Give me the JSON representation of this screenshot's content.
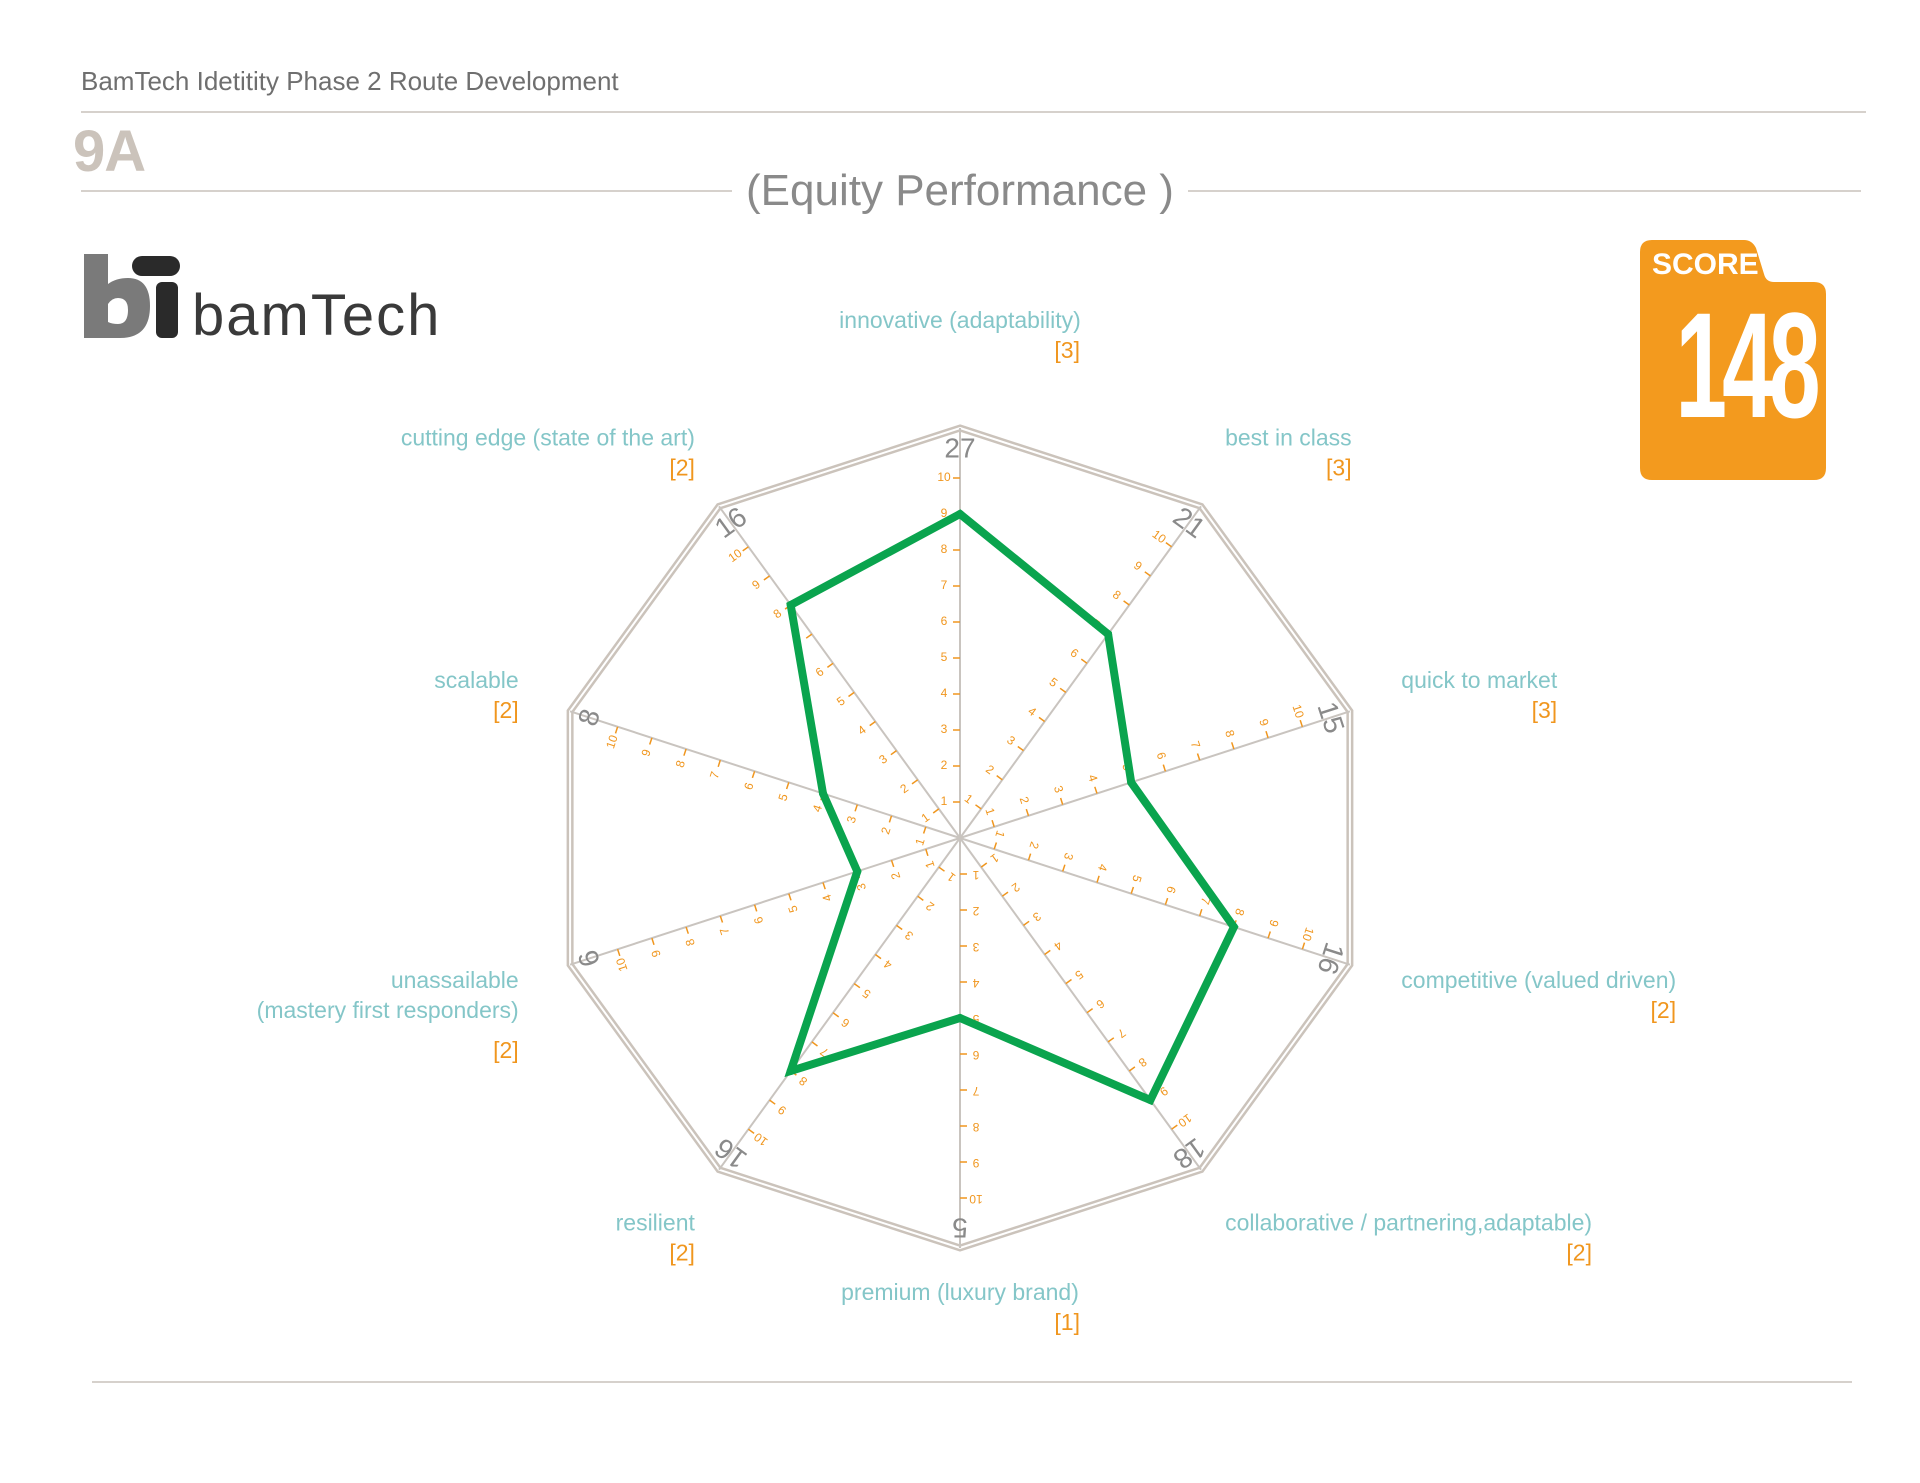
{
  "header": {
    "document_title": "BamTech Idetitity Phase 2 Route Development",
    "page_id": "9A",
    "chart_title": "(Equity Performance )"
  },
  "logo": {
    "wordmark": "bamTech"
  },
  "score": {
    "label": "SCORE",
    "value": "148",
    "color": "#f39a1e"
  },
  "colors": {
    "series_line": "#0aa44e",
    "frame": "#cbc3bb",
    "axis_label": "#84c6c8",
    "weight_label": "#f0961e",
    "total_label": "#8a8a8a"
  },
  "chart_data": {
    "type": "radar",
    "rmax": 10,
    "ticks": [
      "1",
      "2",
      "3",
      "4",
      "5",
      "6",
      "7",
      "8",
      "9",
      "10"
    ],
    "axes": [
      {
        "name": "innovative (adaptability)",
        "weight": "[3]",
        "total": "27",
        "value": 9
      },
      {
        "name": "best in class",
        "weight": "[3]",
        "total": "21",
        "value": 7
      },
      {
        "name": "quick to market",
        "weight": "[3]",
        "total": "15",
        "value": 5
      },
      {
        "name": "competitive (valued driven)",
        "weight": "[2]",
        "total": "16",
        "value": 8
      },
      {
        "name": "collaborative / partnering,adaptable)",
        "weight": "[2]",
        "total": "18",
        "value": 9
      },
      {
        "name": "premium (luxury brand)",
        "weight": "[1]",
        "total": "5",
        "value": 5
      },
      {
        "name": "resilient",
        "weight": "[2]",
        "total": "16",
        "value": 8
      },
      {
        "name": "unassailable",
        "name_line2": "(mastery first responders)",
        "weight": "[2]",
        "total": "6",
        "value": 3
      },
      {
        "name": "scalable",
        "weight": "[2]",
        "total": "8",
        "value": 4
      },
      {
        "name": "cutting edge (state of the art)",
        "weight": "[2]",
        "total": "16",
        "value": 8
      }
    ]
  }
}
